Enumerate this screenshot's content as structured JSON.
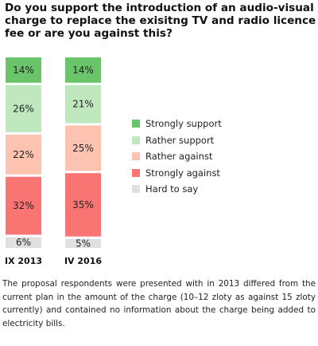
{
  "chart_data": {
    "type": "bar",
    "stacked": true,
    "title": "Do you support the introduction of an audio-visual charge to replace the exisitng TV and radio licence fee or are you against this?",
    "categories": [
      "IX 2013",
      "IV 2016"
    ],
    "series": [
      {
        "name": "Strongly support",
        "color": "#6ac46a",
        "values": [
          14,
          14
        ],
        "labels": [
          "14%",
          "14%"
        ]
      },
      {
        "name": "Rather support",
        "color": "#bfe8bf",
        "values": [
          26,
          21
        ],
        "labels": [
          "26%",
          "21%"
        ]
      },
      {
        "name": "Rather against",
        "color": "#fdc3b0",
        "values": [
          22,
          25
        ],
        "labels": [
          "22%",
          "25%"
        ]
      },
      {
        "name": "Strongly against",
        "color": "#f87573",
        "values": [
          32,
          35
        ],
        "labels": [
          "32%",
          "35%"
        ]
      },
      {
        "name": "Hard to say",
        "color": "#e0e0e0",
        "values": [
          6,
          5
        ],
        "labels": [
          "6%",
          "5%"
        ]
      }
    ],
    "legend_position": "right",
    "grid": false
  },
  "note": "The proposal respondents were presented with in 2013 differed from the current plan in the amount of the charge (10–12 zloty as against 15 zloty currently) and contained no information about the charge being added to electricity bills."
}
